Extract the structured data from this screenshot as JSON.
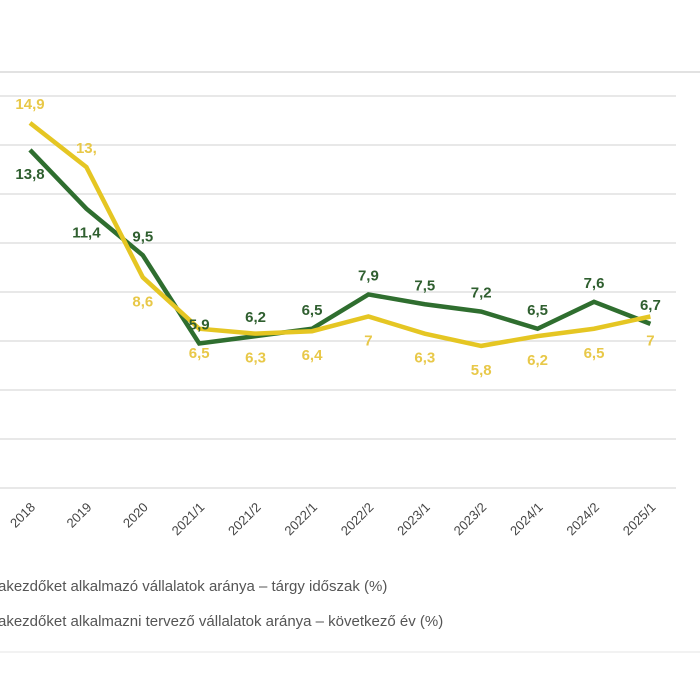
{
  "chart_data": {
    "type": "line",
    "title": "",
    "xlabel": "",
    "ylabel": "",
    "ylim": [
      0,
      16
    ],
    "grid": true,
    "legend_placement": "bottom",
    "categories": [
      "2018",
      "2019",
      "2020",
      "2021/1",
      "2021/2",
      "2022/1",
      "2022/2",
      "2023/1",
      "2023/2",
      "2024/1",
      "2024/2",
      "2025/1"
    ],
    "series": [
      {
        "name": "akezdőket alkalmazó vállalatok aránya – tárgy időszak (%)",
        "color": "#2f6e2f",
        "values": [
          13.8,
          11.4,
          9.5,
          5.9,
          6.2,
          6.5,
          7.9,
          7.5,
          7.2,
          6.5,
          7.6,
          6.7
        ],
        "labels": [
          "13,8",
          "11,4",
          "9,5",
          "5,9",
          "6,2",
          "6,5",
          "7,9",
          "7,5",
          "7,2",
          "6,5",
          "7,6",
          "6,7"
        ]
      },
      {
        "name": "akezdőket alkalmazni tervező vállalatok aránya – következő év (%)",
        "color": "#e5c623",
        "values": [
          14.9,
          13.1,
          8.6,
          6.5,
          6.3,
          6.4,
          7.0,
          6.3,
          5.8,
          6.2,
          6.5,
          7.0
        ],
        "labels": [
          "14,9",
          "13,",
          "8,6",
          "6,5",
          "6,3",
          "6,4",
          "7",
          "6,3",
          "5,8",
          "6,2",
          "6,5",
          "7"
        ]
      }
    ]
  }
}
